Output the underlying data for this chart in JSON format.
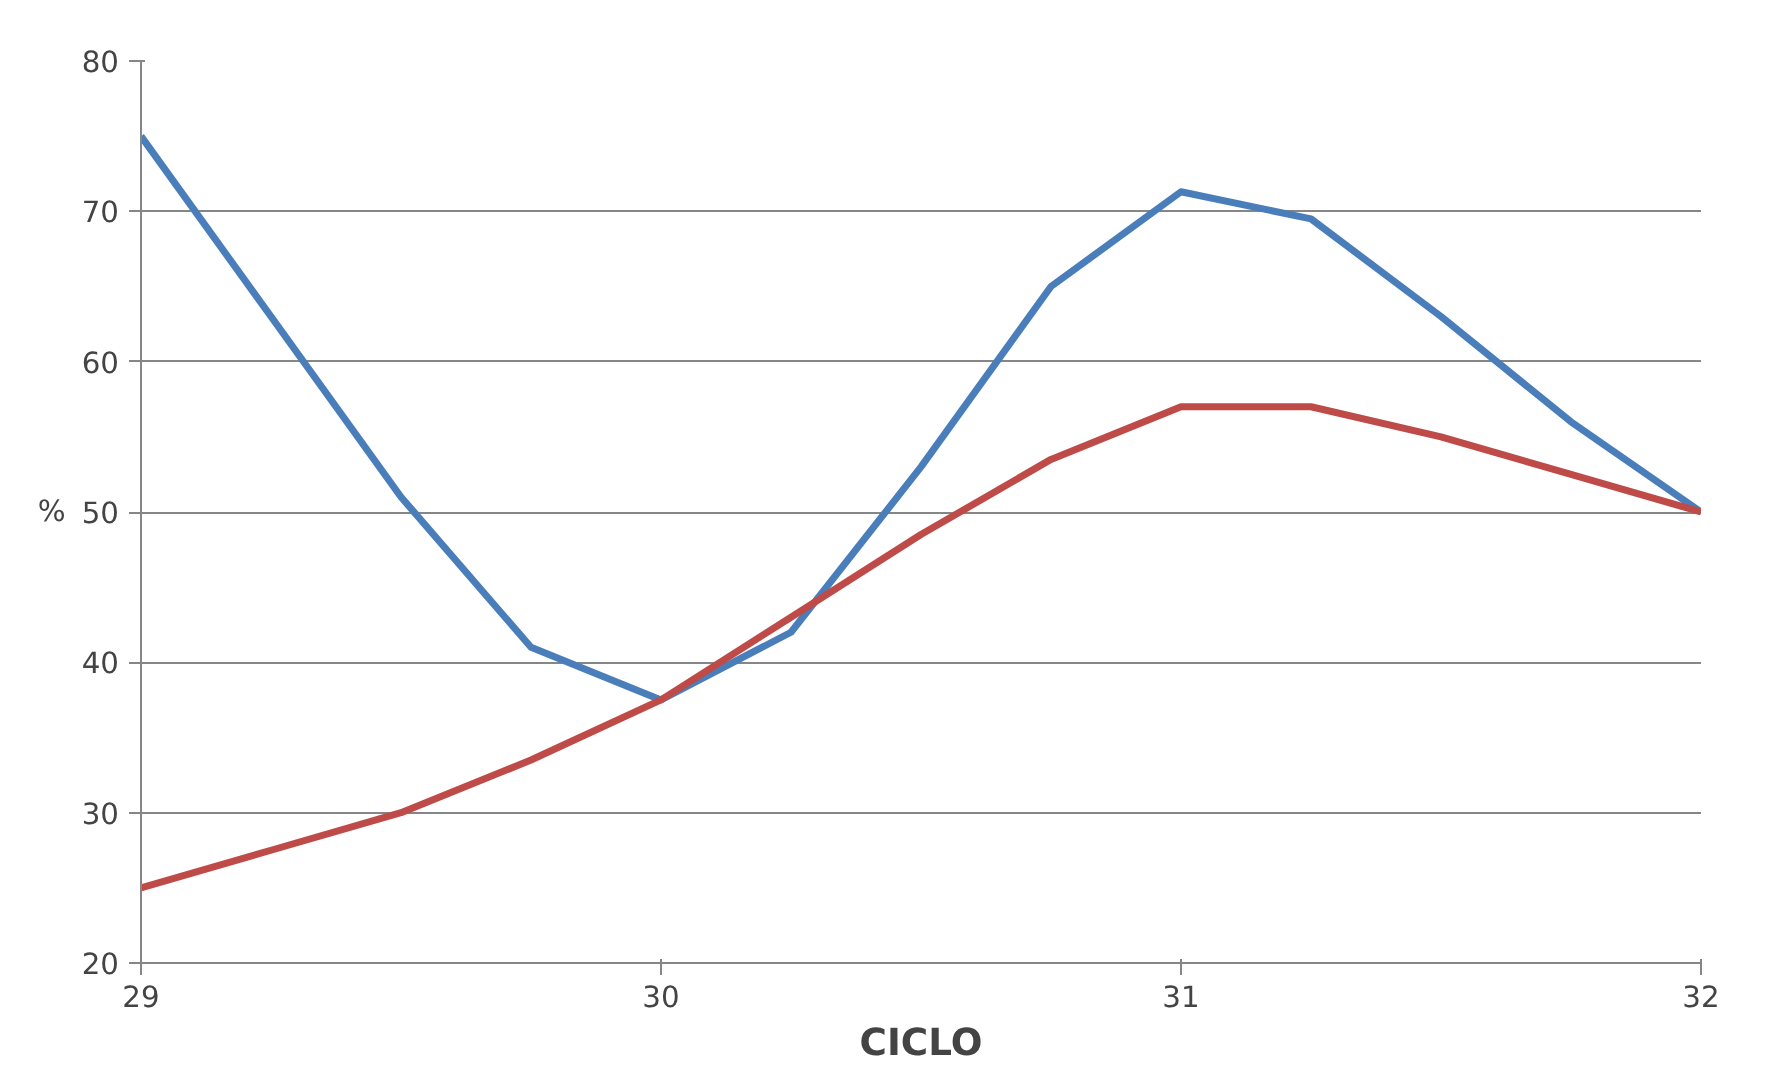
{
  "chart_data": {
    "type": "line",
    "xlabel": "CICLO",
    "ylabel": "%",
    "x": [
      29,
      29.25,
      29.5,
      29.75,
      30,
      30.25,
      30.5,
      30.75,
      31,
      31.25,
      31.5,
      31.75,
      32
    ],
    "series": [
      {
        "color": "#4a7ebb",
        "values": [
          75,
          63,
          51,
          41,
          37.5,
          42,
          53,
          65,
          71.3,
          69.5,
          63,
          56,
          50
        ]
      },
      {
        "color": "#be4b48",
        "values": [
          25,
          27.5,
          30,
          33.5,
          37.5,
          43,
          48.5,
          53.5,
          57,
          57,
          55,
          52.5,
          50
        ]
      }
    ],
    "xlim": [
      29,
      32
    ],
    "xticks": [
      29,
      30,
      31,
      32
    ],
    "ylim": [
      20,
      80
    ],
    "yticks": [
      20,
      30,
      40,
      50,
      60,
      70,
      80
    ],
    "grid": "y",
    "marker": "none",
    "line_style": "solid"
  }
}
